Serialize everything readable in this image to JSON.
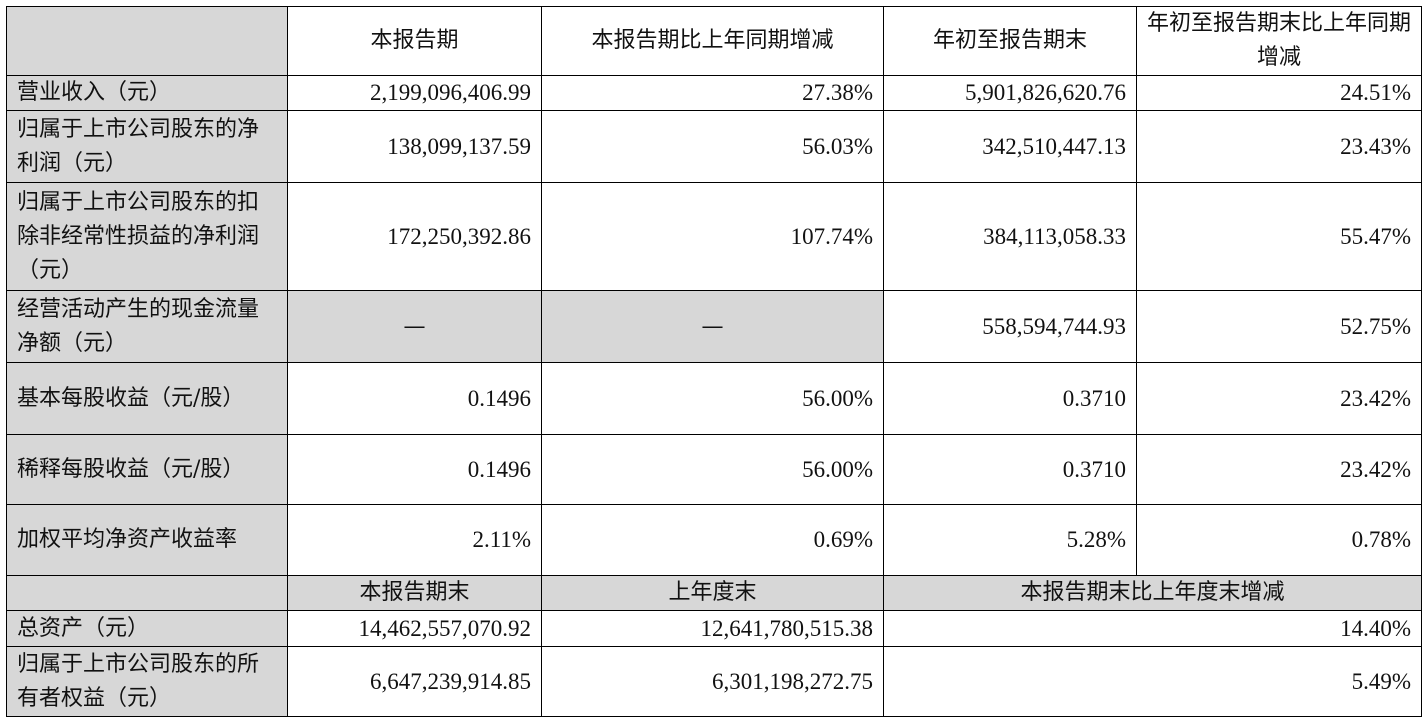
{
  "header": {
    "col1": "本报告期",
    "col2": "本报告期比上年同期增减",
    "col3": "年初至报告期末",
    "col4": "年初至报告期末比上年同期增减"
  },
  "rows": [
    {
      "label": "营业收入（元）",
      "v1": "2,199,096,406.99",
      "v2": "27.38%",
      "v3": "5,901,826,620.76",
      "v4": "24.51%"
    },
    {
      "label": "归属于上市公司股东的净利润（元）",
      "v1": "138,099,137.59",
      "v2": "56.03%",
      "v3": "342,510,447.13",
      "v4": "23.43%"
    },
    {
      "label": "归属于上市公司股东的扣除非经常性损益的净利润（元）",
      "v1": "172,250,392.86",
      "v2": "107.74%",
      "v3": "384,113,058.33",
      "v4": "55.47%"
    },
    {
      "label": "经营活动产生的现金流量净额（元）",
      "v1": "—",
      "v2": "—",
      "v3": "558,594,744.93",
      "v4": "52.75%"
    },
    {
      "label": "基本每股收益（元/股）",
      "v1": "0.1496",
      "v2": "56.00%",
      "v3": "0.3710",
      "v4": "23.42%"
    },
    {
      "label": "稀释每股收益（元/股）",
      "v1": "0.1496",
      "v2": "56.00%",
      "v3": "0.3710",
      "v4": "23.42%"
    },
    {
      "label": "加权平均净资产收益率",
      "v1": "2.11%",
      "v2": "0.69%",
      "v3": "5.28%",
      "v4": "0.78%"
    }
  ],
  "header2": {
    "col1": "本报告期末",
    "col2": "上年度末",
    "col3": "本报告期末比上年度末增减"
  },
  "rows2": [
    {
      "label": "总资产（元）",
      "v1": "14,462,557,070.92",
      "v2": "12,641,780,515.38",
      "v3": "14.40%"
    },
    {
      "label": "归属于上市公司股东的所有者权益（元）",
      "v1": "6,647,239,914.85",
      "v2": "6,301,198,272.75",
      "v3": "5.49%"
    }
  ],
  "colors": {
    "header_fill": "#d7d7d7",
    "border": "#000000"
  }
}
